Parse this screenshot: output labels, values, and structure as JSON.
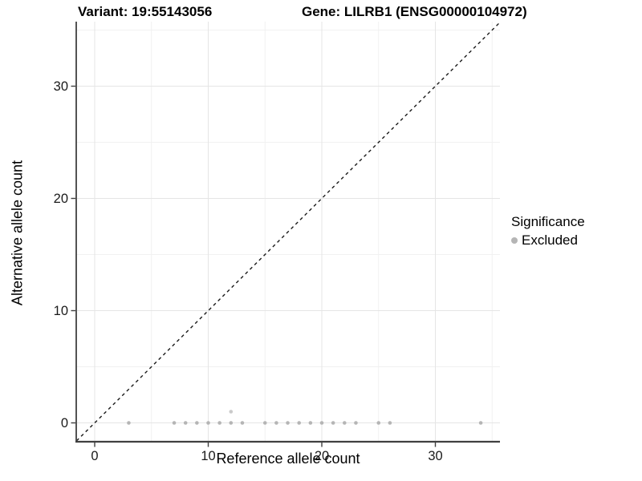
{
  "figure": {
    "title_left": "Variant: 19:55143056",
    "title_right": "Gene: LILRB1 (ENSG00000104972)"
  },
  "chart_data": {
    "type": "scatter",
    "xlabel": "Reference allele count",
    "ylabel": "Alternative allele count",
    "x_ticks": [
      0,
      10,
      20,
      30
    ],
    "y_ticks": [
      0,
      10,
      20,
      30
    ],
    "x_minor_gridlines": [
      5,
      15,
      25,
      35
    ],
    "y_minor_gridlines": [
      5,
      15,
      25,
      35
    ],
    "xlim": [
      -1.7,
      35.8
    ],
    "ylim": [
      -1.7,
      35.8
    ],
    "grid": "on",
    "identity_line": {
      "style": "dashed",
      "equation": "y = x",
      "color": "#1a1a1a"
    },
    "series": [
      {
        "name": "Excluded",
        "color": "#b5b5b5",
        "points": [
          [
            3,
            0
          ],
          [
            7,
            0
          ],
          [
            8,
            0
          ],
          [
            9,
            0
          ],
          [
            10,
            0
          ],
          [
            11,
            0
          ],
          [
            12,
            0
          ],
          [
            13,
            0
          ],
          [
            15,
            0
          ],
          [
            16,
            0
          ],
          [
            17,
            0
          ],
          [
            18,
            0
          ],
          [
            19,
            0
          ],
          [
            20,
            0
          ],
          [
            21,
            0
          ],
          [
            22,
            0
          ],
          [
            23,
            0
          ],
          [
            25,
            0
          ],
          [
            26,
            0
          ],
          [
            34,
            0
          ],
          [
            12,
            1
          ]
        ],
        "lighter_points": [
          [
            12,
            1
          ]
        ]
      }
    ],
    "legend": {
      "title": "Significance",
      "position": "right",
      "items": [
        {
          "label": "Excluded",
          "color": "#b5b5b5"
        }
      ]
    }
  },
  "colors": {
    "background": "#ffffff",
    "grid_major": "#e5e5e5",
    "grid_minor": "#f1f1f1",
    "axis_line": "#404040",
    "tick_label": "#1a1a1a",
    "point": "#b5b5b5",
    "point_light": "#cacaca",
    "dashed_line": "#1a1a1a"
  }
}
